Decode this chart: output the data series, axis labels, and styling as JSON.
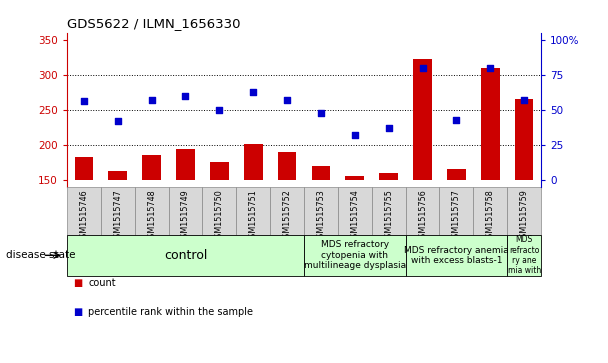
{
  "title": "GDS5622 / ILMN_1656330",
  "samples": [
    "GSM1515746",
    "GSM1515747",
    "GSM1515748",
    "GSM1515749",
    "GSM1515750",
    "GSM1515751",
    "GSM1515752",
    "GSM1515753",
    "GSM1515754",
    "GSM1515755",
    "GSM1515756",
    "GSM1515757",
    "GSM1515758",
    "GSM1515759"
  ],
  "counts": [
    183,
    163,
    185,
    194,
    176,
    201,
    190,
    170,
    156,
    160,
    323,
    166,
    310,
    265
  ],
  "percentile_ranks": [
    56,
    42,
    57,
    60,
    50,
    63,
    57,
    48,
    32,
    37,
    80,
    43,
    80,
    57
  ],
  "bar_color": "#cc0000",
  "dot_color": "#0000cc",
  "ylim_left": [
    140,
    360
  ],
  "bar_bottom": 150,
  "yticks_left": [
    150,
    200,
    250,
    300,
    350
  ],
  "yticks_right": [
    0,
    25,
    50,
    75,
    100
  ],
  "disease_groups": [
    {
      "label": "control",
      "start": 0,
      "end": 7
    },
    {
      "label": "MDS refractory\ncytopenia with\nmultilineage dysplasia",
      "start": 7,
      "end": 10
    },
    {
      "label": "MDS refractory anemia\nwith excess blasts-1",
      "start": 10,
      "end": 13
    },
    {
      "label": "MDS\nrefracto\nry ane\nmia with",
      "start": 13,
      "end": 14
    }
  ],
  "disease_group_color": "#ccffcc",
  "disease_group_border": "#000000",
  "disease_state_label": "disease state",
  "legend_count_label": "count",
  "legend_percentile_label": "percentile rank within the sample",
  "grid_color": "#000000",
  "right_axis_color": "#0000cc",
  "left_axis_color": "#cc0000",
  "sample_cell_color": "#d8d8d8",
  "sample_cell_border": "#888888"
}
